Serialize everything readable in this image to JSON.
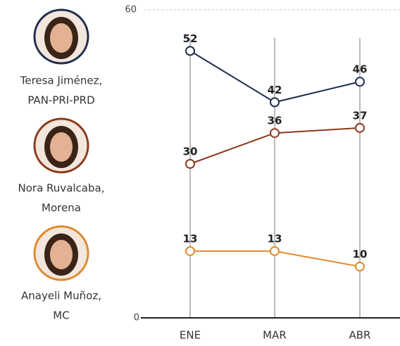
{
  "chart_data": {
    "type": "line",
    "categories": [
      "ENE",
      "MAR",
      "ABR"
    ],
    "ylim": [
      0,
      60
    ],
    "yticks": [
      0,
      60
    ],
    "grid": true,
    "series": [
      {
        "name": "Teresa Jiménez,",
        "party": "PAN-PRI-PRD",
        "color": "#1f2d4e",
        "values": [
          52,
          42,
          46
        ]
      },
      {
        "name": "Nora Ruvalcaba,",
        "party": "Morena",
        "color": "#8b3a1e",
        "values": [
          30,
          36,
          37
        ]
      },
      {
        "name": "Anayeli Muñoz,",
        "party": "MC",
        "color": "#e08a2a",
        "values": [
          13,
          13,
          10
        ]
      }
    ]
  }
}
